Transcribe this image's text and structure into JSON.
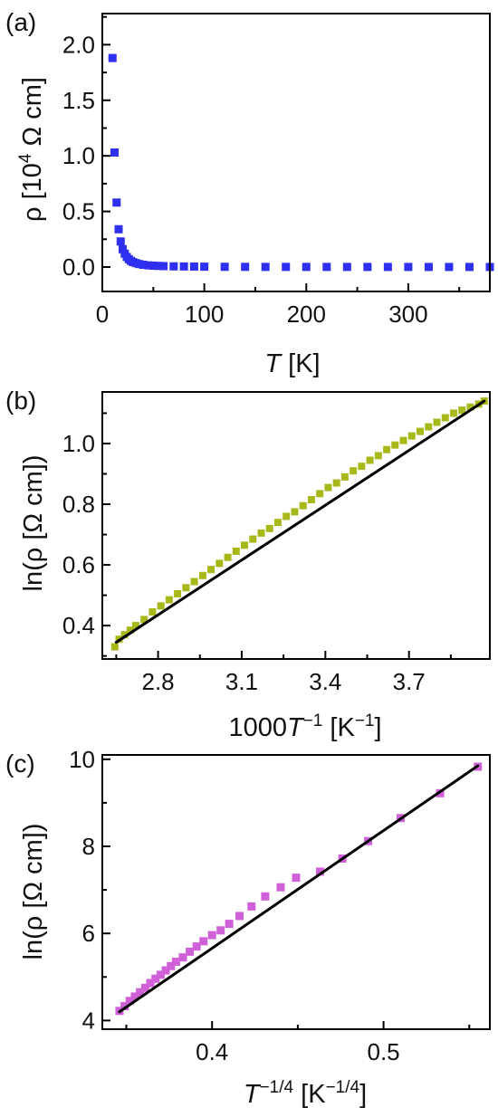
{
  "chart_data": [
    {
      "panel_label": "(a)",
      "type": "scatter",
      "xlabel_italic": "T",
      "xlabel_rest": " [K]",
      "ylabel_lead": "ρ [10",
      "ylabel_sup": "4",
      "ylabel_tail": " Ω cm]",
      "xlim": [
        0,
        380
      ],
      "ylim": [
        -0.22,
        2.28
      ],
      "xticks": [
        0,
        100,
        200,
        300
      ],
      "xtick_labels": [
        "0",
        "100",
        "200",
        "300"
      ],
      "yticks": [
        0.0,
        0.5,
        1.0,
        1.5,
        2.0
      ],
      "ytick_labels": [
        "0.0",
        "0.5",
        "1.0",
        "1.5",
        "2.0"
      ],
      "marker": "square",
      "color": "#2f2ff0",
      "series": [
        {
          "x": [
            10,
            12,
            14,
            16,
            18,
            20,
            22,
            24,
            26,
            28,
            30,
            33,
            36,
            40,
            45,
            50,
            55,
            60,
            70,
            80,
            90,
            100,
            120,
            140,
            160,
            180,
            200,
            220,
            240,
            260,
            280,
            300,
            320,
            340,
            360,
            380
          ],
          "y": [
            1.88,
            1.03,
            0.58,
            0.34,
            0.23,
            0.16,
            0.12,
            0.09,
            0.07,
            0.055,
            0.045,
            0.035,
            0.027,
            0.02,
            0.015,
            0.012,
            0.01,
            0.008,
            0.006,
            0.005,
            0.004,
            0.003,
            0.002,
            0.0015,
            0.001,
            0.001,
            0.001,
            0.0008,
            0.0008,
            0.0006,
            0.0006,
            0.0005,
            0.0005,
            0.0004,
            0.0004,
            0.0004
          ]
        }
      ]
    },
    {
      "panel_label": "(b)",
      "type": "scatter",
      "xlabel_lead": "1000",
      "xlabel_italic": "T",
      "xlabel_sup": "−1",
      "xlabel_rest": " [K",
      "xlabel_sup2": "−1",
      "xlabel_tail": "]",
      "ylabel": "ln(ρ [Ω cm])",
      "xlim": [
        2.6,
        3.99
      ],
      "ylim": [
        0.29,
        1.17
      ],
      "xticks": [
        2.8,
        3.1,
        3.4,
        3.7
      ],
      "xtick_labels": [
        "2.8",
        "3.1",
        "3.4",
        "3.7"
      ],
      "yticks": [
        0.4,
        0.6,
        0.8,
        1.0
      ],
      "ytick_labels": [
        "0.4",
        "0.6",
        "0.8",
        "1.0"
      ],
      "marker": "square",
      "color": "#a8b818",
      "fit_color": "#000000",
      "series": [
        {
          "x": [
            2.645,
            2.66,
            2.68,
            2.7,
            2.72,
            2.75,
            2.78,
            2.81,
            2.84,
            2.87,
            2.9,
            2.93,
            2.96,
            2.99,
            3.02,
            3.05,
            3.08,
            3.11,
            3.14,
            3.17,
            3.2,
            3.23,
            3.26,
            3.29,
            3.32,
            3.35,
            3.38,
            3.41,
            3.44,
            3.47,
            3.5,
            3.53,
            3.56,
            3.59,
            3.62,
            3.65,
            3.68,
            3.71,
            3.74,
            3.77,
            3.8,
            3.83,
            3.86,
            3.89,
            3.92,
            3.95,
            3.97
          ],
          "y": [
            0.33,
            0.355,
            0.37,
            0.385,
            0.4,
            0.42,
            0.445,
            0.465,
            0.485,
            0.505,
            0.525,
            0.545,
            0.565,
            0.585,
            0.605,
            0.625,
            0.645,
            0.665,
            0.685,
            0.705,
            0.72,
            0.74,
            0.76,
            0.775,
            0.795,
            0.815,
            0.835,
            0.855,
            0.87,
            0.89,
            0.91,
            0.925,
            0.945,
            0.96,
            0.98,
            0.995,
            1.01,
            1.025,
            1.04,
            1.055,
            1.07,
            1.085,
            1.1,
            1.11,
            1.12,
            1.13,
            1.14
          ]
        }
      ],
      "fit": {
        "x": [
          2.65,
          3.97
        ],
        "y": [
          0.345,
          1.14
        ]
      }
    },
    {
      "panel_label": "(c)",
      "type": "scatter",
      "xlabel_italic": "T",
      "xlabel_sup": "−1/4",
      "xlabel_rest": " [K",
      "xlabel_sup2": "−1/4",
      "xlabel_tail": "]",
      "ylabel": "ln(ρ [Ω cm])",
      "xlim": [
        0.336,
        0.562
      ],
      "ylim": [
        3.8,
        10.1
      ],
      "xticks": [
        0.4,
        0.5
      ],
      "xtick_labels": [
        "0.4",
        "0.5"
      ],
      "yticks": [
        4,
        6,
        8,
        10
      ],
      "ytick_labels": [
        "4",
        "6",
        "8",
        "10"
      ],
      "marker": "square",
      "color": "#d060d8",
      "fit_color": "#000000",
      "series": [
        {
          "x": [
            0.346,
            0.349,
            0.352,
            0.355,
            0.358,
            0.361,
            0.364,
            0.367,
            0.37,
            0.373,
            0.376,
            0.379,
            0.383,
            0.387,
            0.391,
            0.395,
            0.4,
            0.405,
            0.41,
            0.416,
            0.423,
            0.431,
            0.44,
            0.449,
            0.463,
            0.476,
            0.491,
            0.51,
            0.533,
            0.555
          ],
          "y": [
            4.22,
            4.33,
            4.45,
            4.55,
            4.65,
            4.75,
            4.86,
            4.96,
            5.05,
            5.15,
            5.25,
            5.35,
            5.45,
            5.58,
            5.7,
            5.82,
            5.96,
            6.07,
            6.22,
            6.4,
            6.62,
            6.85,
            7.06,
            7.28,
            7.42,
            7.72,
            8.12,
            8.65,
            9.22,
            9.83
          ]
        }
      ],
      "fit": {
        "x": [
          0.346,
          0.555
        ],
        "y": [
          4.2,
          9.85
        ]
      }
    }
  ]
}
